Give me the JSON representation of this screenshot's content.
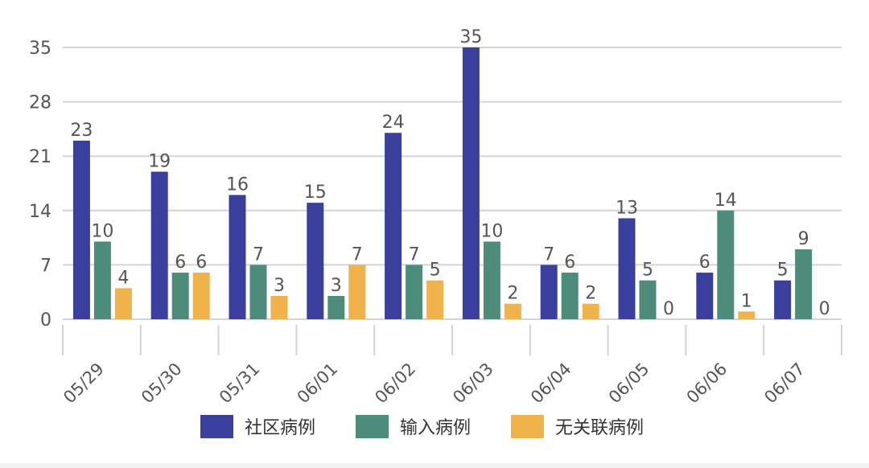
{
  "chart_data": {
    "type": "bar",
    "title": "",
    "xlabel": "",
    "ylabel": "",
    "categories": [
      "05/29",
      "05/30",
      "05/31",
      "06/01",
      "06/02",
      "06/03",
      "06/04",
      "06/05",
      "06/06",
      "06/07"
    ],
    "series": [
      {
        "name": "社区病例",
        "color": "#3a3f9e",
        "values": [
          23,
          19,
          16,
          15,
          24,
          35,
          7,
          13,
          6,
          5
        ]
      },
      {
        "name": "输入病例",
        "color": "#4d8c7b",
        "values": [
          10,
          6,
          7,
          3,
          7,
          10,
          6,
          5,
          14,
          9
        ]
      },
      {
        "name": "无关联病例",
        "color": "#f0b24a",
        "values": [
          4,
          6,
          3,
          7,
          5,
          2,
          2,
          0,
          1,
          0
        ]
      }
    ],
    "y_ticks": [
      "0",
      "7",
      "14",
      "21",
      "28",
      "35"
    ],
    "ylim": [
      0,
      35
    ],
    "grid": true,
    "legend_position": "bottom-center",
    "data_labels": true
  }
}
